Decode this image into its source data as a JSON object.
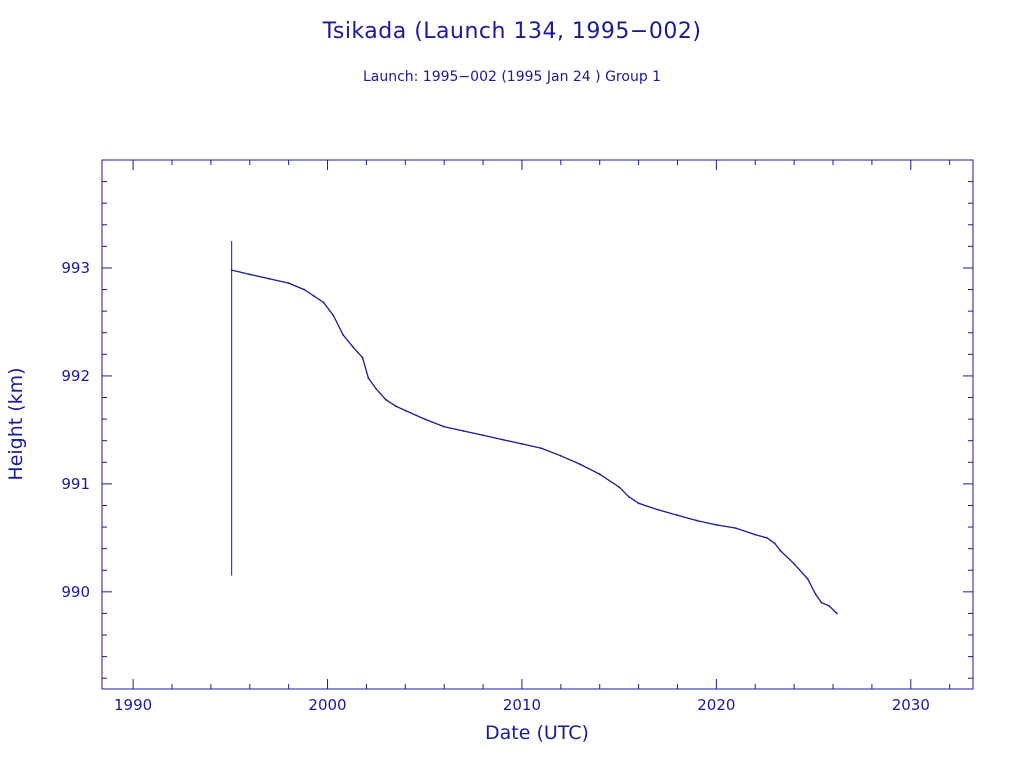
{
  "chart_data": {
    "type": "line",
    "title": "Tsikada (Launch 134, 1995−002)",
    "subtitle": "Launch: 1995−002  (1995 Jan 24 )  Group 1",
    "xlabel": "Date (UTC)",
    "ylabel": "Height (km)",
    "xlim": [
      1988.4,
      2033.2
    ],
    "ylim": [
      989.1,
      994.0
    ],
    "x_ticks": [
      1990,
      2000,
      2010,
      2020,
      2030
    ],
    "x_tick_labels": [
      "1990",
      "2000",
      "2010",
      "2020",
      "2030"
    ],
    "y_ticks": [
      990,
      991,
      992,
      993
    ],
    "y_tick_labels": [
      "990",
      "991",
      "992",
      "993"
    ],
    "x_minor_step": 2,
    "y_minor_step": 0.2,
    "grid": false,
    "launch_marker": {
      "x": 1995.07,
      "y_range": [
        990.15,
        993.25
      ]
    },
    "x": [
      1995.07,
      1996,
      1997,
      1998,
      1998.8,
      1999.3,
      1999.8,
      2000.3,
      2000.8,
      2001.3,
      2001.8,
      2002.1,
      2002.5,
      2003,
      2003.5,
      2004,
      2005,
      2006,
      2007,
      2008,
      2009,
      2010,
      2011,
      2012,
      2013,
      2014,
      2015,
      2015.5,
      2016,
      2017,
      2018,
      2019,
      2020,
      2021,
      2022,
      2022.6,
      2023,
      2023.3,
      2024,
      2024.7,
      2025.1,
      2025.4,
      2025.8,
      2026.2
    ],
    "y": [
      992.98,
      992.94,
      992.9,
      992.86,
      992.8,
      992.74,
      992.68,
      992.56,
      992.38,
      992.27,
      992.17,
      991.98,
      991.88,
      991.78,
      991.72,
      991.68,
      991.6,
      991.53,
      991.49,
      991.45,
      991.41,
      991.37,
      991.33,
      991.26,
      991.18,
      991.09,
      990.97,
      990.88,
      990.82,
      990.76,
      990.71,
      990.66,
      990.62,
      990.59,
      990.53,
      990.5,
      990.45,
      990.38,
      990.26,
      990.12,
      989.98,
      989.9,
      989.87,
      989.8
    ]
  }
}
